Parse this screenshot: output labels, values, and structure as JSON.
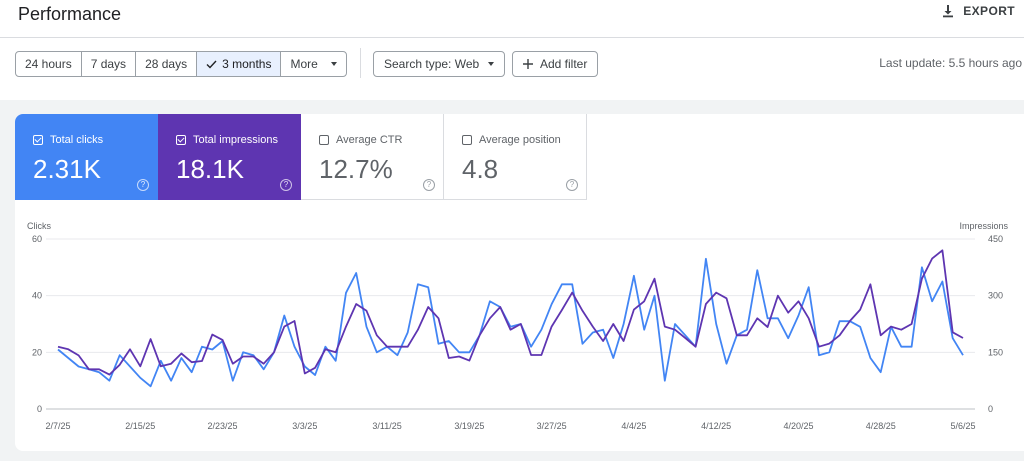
{
  "header": {
    "title": "Performance",
    "export_label": "EXPORT"
  },
  "date_range": {
    "options": [
      "24 hours",
      "7 days",
      "28 days",
      "3 months",
      "More"
    ],
    "selected": "3 months"
  },
  "filters": {
    "search_type": "Search type: Web",
    "add_filter": "Add filter"
  },
  "last_update": "Last update: 5.5 hours ago",
  "metrics": {
    "clicks": {
      "label": "Total clicks",
      "value": "2.31K",
      "checked": true
    },
    "impressions": {
      "label": "Total impressions",
      "value": "18.1K",
      "checked": true
    },
    "ctr": {
      "label": "Average CTR",
      "value": "12.7%",
      "checked": false
    },
    "position": {
      "label": "Average position",
      "value": "4.8",
      "checked": false
    }
  },
  "colors": {
    "clicks": "#4285f4",
    "impressions": "#5e35b1"
  },
  "chart_data": {
    "type": "line",
    "left_axis": {
      "label": "Clicks",
      "ticks": [
        0,
        20,
        40,
        60
      ],
      "ylim": [
        0,
        60
      ]
    },
    "right_axis": {
      "label": "Impressions",
      "ticks": [
        0,
        150,
        300,
        450
      ],
      "ylim": [
        0,
        450
      ]
    },
    "x_tick_labels": [
      "2/7/25",
      "2/15/25",
      "2/23/25",
      "3/3/25",
      "3/11/25",
      "3/19/25",
      "3/27/25",
      "4/4/25",
      "4/12/25",
      "4/20/25",
      "4/28/25",
      "5/6/25"
    ],
    "x_start": "2/7/25",
    "x_end": "5/6/25",
    "grid": true,
    "series": [
      {
        "name": "Clicks",
        "axis": "left",
        "values": [
          21,
          18,
          15,
          14,
          13,
          10,
          19,
          15,
          11,
          8,
          17,
          10,
          18,
          13,
          22,
          21,
          24,
          10,
          20,
          19,
          14,
          20,
          33,
          22,
          15,
          12,
          22,
          17,
          41,
          48,
          29,
          20,
          22,
          19,
          27,
          44,
          43,
          23,
          24,
          20,
          20,
          26,
          38,
          36,
          29,
          30,
          22,
          28,
          37,
          44,
          44,
          23,
          27,
          28,
          18,
          30,
          47,
          28,
          40,
          10,
          30,
          26,
          22,
          53,
          30,
          16,
          26,
          28,
          49,
          32,
          32,
          25,
          33,
          43,
          19,
          20,
          31,
          31,
          29,
          18,
          13,
          29,
          22,
          22,
          50,
          38,
          45,
          25,
          19
        ]
      },
      {
        "name": "Impressions",
        "axis": "right",
        "values": [
          165,
          158,
          142,
          105,
          105,
          91,
          117,
          158,
          113,
          185,
          113,
          120,
          147,
          124,
          127,
          197,
          183,
          120,
          139,
          139,
          120,
          150,
          218,
          233,
          94,
          109,
          158,
          150,
          218,
          278,
          260,
          195,
          165,
          165,
          165,
          210,
          270,
          240,
          135,
          139,
          128,
          195,
          240,
          270,
          210,
          225,
          143,
          143,
          218,
          262,
          308,
          260,
          218,
          180,
          225,
          180,
          263,
          285,
          345,
          218,
          210,
          188,
          165,
          278,
          308,
          293,
          195,
          195,
          240,
          217,
          300,
          255,
          285,
          240,
          165,
          173,
          195,
          233,
          263,
          330,
          195,
          218,
          210,
          225,
          345,
          398,
          420,
          203,
          188
        ]
      }
    ]
  }
}
